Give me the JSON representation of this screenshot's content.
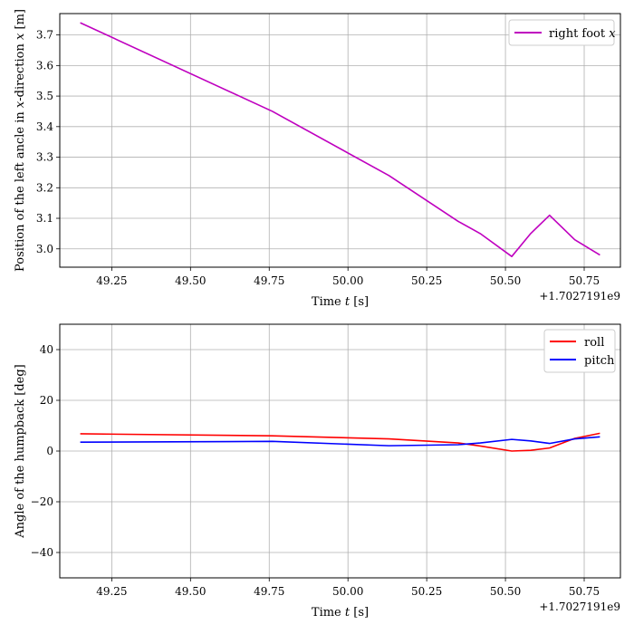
{
  "chart_data": [
    {
      "type": "line",
      "xlabel_prefix": "Time ",
      "xlabel_var": "t",
      "xlabel_suffix": " [s]",
      "ylabel_prefix": "Position of the left ancle in ",
      "ylabel_var": "x",
      "ylabel_suffix": "-direction ",
      "ylabel_var2": "x",
      "ylabel_unit": " [m]",
      "x_offset_label": "+1.7027191e9",
      "xlim": [
        49.085,
        50.865
      ],
      "ylim": [
        2.94,
        3.77
      ],
      "xticks": [
        49.25,
        49.5,
        49.75,
        50.0,
        50.25,
        50.5,
        50.75
      ],
      "xtick_labels": [
        "49.25",
        "49.50",
        "49.75",
        "50.00",
        "50.25",
        "50.50",
        "50.75"
      ],
      "yticks": [
        3.0,
        3.1,
        3.2,
        3.3,
        3.4,
        3.5,
        3.6,
        3.7
      ],
      "ytick_labels": [
        "3.0",
        "3.1",
        "3.2",
        "3.3",
        "3.4",
        "3.5",
        "3.6",
        "3.7"
      ],
      "grid": true,
      "legend_position": "top-right",
      "series": [
        {
          "name": "right foot ",
          "name_var": "x",
          "color": "#bf00bf",
          "x": [
            49.15,
            49.76,
            50.13,
            50.35,
            50.42,
            50.52,
            50.58,
            50.64,
            50.72,
            50.8
          ],
          "y": [
            3.74,
            3.45,
            3.24,
            3.09,
            3.05,
            2.975,
            3.05,
            3.11,
            3.03,
            2.98
          ]
        }
      ]
    },
    {
      "type": "line",
      "xlabel_prefix": "Time ",
      "xlabel_var": "t",
      "xlabel_suffix": " [s]",
      "ylabel": "Angle of the humpback [deg]",
      "x_offset_label": "+1.7027191e9",
      "xlim": [
        49.085,
        50.865
      ],
      "ylim": [
        -50,
        50
      ],
      "xticks": [
        49.25,
        49.5,
        49.75,
        50.0,
        50.25,
        50.5,
        50.75
      ],
      "xtick_labels": [
        "49.25",
        "49.50",
        "49.75",
        "50.00",
        "50.25",
        "50.50",
        "50.75"
      ],
      "yticks": [
        -40,
        -20,
        0,
        20,
        40
      ],
      "ytick_labels": [
        "−40",
        "−20",
        "0",
        "20",
        "40"
      ],
      "grid": true,
      "legend_position": "top-right",
      "series": [
        {
          "name": "roll",
          "color": "#ff0000",
          "x": [
            49.15,
            49.76,
            50.13,
            50.35,
            50.42,
            50.52,
            50.58,
            50.64,
            50.72,
            50.8
          ],
          "y": [
            6.8,
            6.0,
            4.8,
            3.2,
            2.0,
            0.0,
            0.3,
            1.2,
            5.0,
            7.0
          ]
        },
        {
          "name": "pitch",
          "color": "#0000ff",
          "x": [
            49.15,
            49.76,
            50.13,
            50.35,
            50.42,
            50.52,
            50.58,
            50.64,
            50.72,
            50.8
          ],
          "y": [
            3.5,
            3.8,
            2.1,
            2.5,
            3.2,
            4.6,
            4.0,
            3.0,
            4.8,
            5.6
          ]
        }
      ]
    }
  ]
}
